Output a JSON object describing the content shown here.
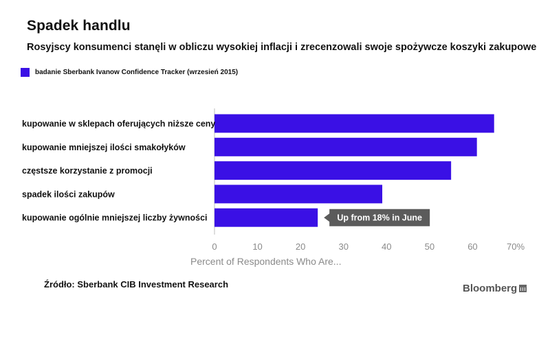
{
  "title": "Spadek handlu",
  "subtitle": "Rosyjscy konsumenci stanęli w obliczu wysokiej inflacji i zrecenzowali swoje spożywcze koszyki zakupowe",
  "legend": {
    "label": "badanie Sberbank Ivanow Confidence Tracker (wrzesień 2015)",
    "color": "#3a10e5"
  },
  "chart_data": {
    "type": "bar",
    "orientation": "horizontal",
    "categories": [
      "kupowanie w sklepach oferujących niższe ceny",
      "kupowanie mniejszej ilości smakołyków",
      "częstsze korzystanie z promocji",
      "spadek ilości zakupów",
      "kupowanie ogólnie mniejszej liczby żywności"
    ],
    "series": [
      {
        "name": "badanie Sberbank Ivanow Confidence Tracker (wrzesień 2015)",
        "values": [
          65,
          61,
          55,
          39,
          24
        ]
      }
    ],
    "xlim": [
      0,
      70
    ],
    "xticks": [
      "0",
      "10",
      "20",
      "30",
      "40",
      "50",
      "60",
      "70%"
    ],
    "xlabel": "Percent of Respondents Who Are...",
    "annotation": {
      "category_index": 4,
      "text": "Up from 18% in June"
    },
    "bar_color": "#3a10e5"
  },
  "source": "Źródło: Sberbank CIB Investment Research",
  "brand": "Bloomberg"
}
